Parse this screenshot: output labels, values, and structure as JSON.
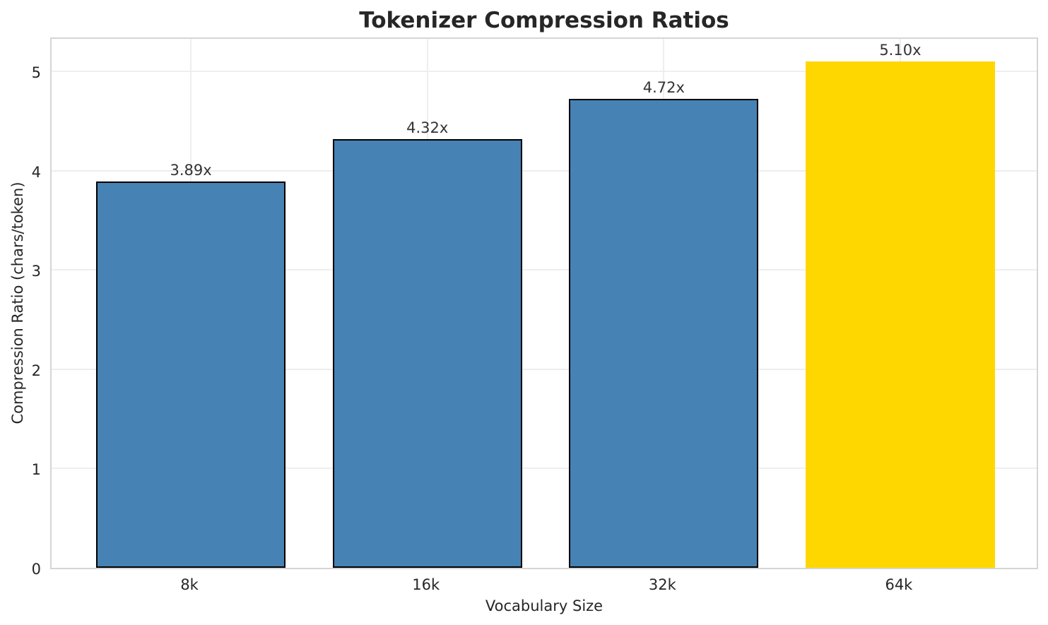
{
  "chart_data": {
    "type": "bar",
    "title": "Tokenizer Compression Ratios",
    "xlabel": "Vocabulary Size",
    "ylabel": "Compression Ratio (chars/token)",
    "categories": [
      "8k",
      "16k",
      "32k",
      "64k"
    ],
    "values": [
      3.89,
      4.32,
      4.72,
      5.1
    ],
    "bar_labels": [
      "3.89x",
      "4.32x",
      "4.72x",
      "5.10x"
    ],
    "bar_colors": [
      "#4682B4",
      "#4682B4",
      "#4682B4",
      "#FFD700"
    ],
    "bar_edge_colors": [
      "#000000",
      "#000000",
      "#000000",
      "none"
    ],
    "yticks": [
      0,
      1,
      2,
      3,
      4,
      5
    ],
    "ytick_labels": [
      "0",
      "1",
      "2",
      "3",
      "4",
      "5"
    ],
    "ylim": [
      0,
      5.355
    ],
    "bar_width_fraction": 0.8,
    "grid": true,
    "legend": "none"
  },
  "colors": {
    "bar_default": "#4682B4",
    "bar_highlight": "#FFD700",
    "bar_edge": "#000000",
    "grid": "#eeeeee",
    "spine": "#d5d5d5",
    "text": "#262626",
    "background": "#ffffff"
  }
}
